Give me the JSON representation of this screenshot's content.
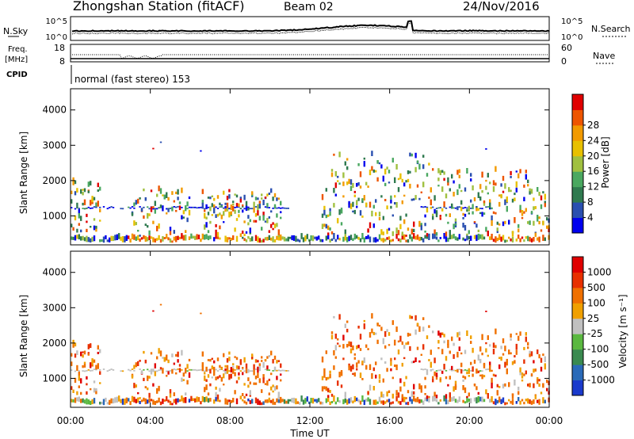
{
  "header": {
    "title": "Zhongshan Station (fitACF)",
    "beam": "Beam 02",
    "date": "24/Nov/2016"
  },
  "noise_panel": {
    "left_label": "N.Sky",
    "left_ticks": [
      "10^5",
      "10^0"
    ],
    "right_label": "N.Search",
    "right_ticks": [
      "10^5",
      "10^0"
    ]
  },
  "freq_panel": {
    "left_label_1": "Freq.",
    "left_label_2": "[MHz]",
    "left_ticks": [
      "18",
      "8"
    ],
    "right_label": "Nave",
    "right_ticks": [
      "60",
      "0"
    ]
  },
  "cpid_panel": {
    "label": "CPID",
    "mode_text": "normal (fast stereo) 153"
  },
  "chart_data": [
    {
      "type": "heatmap",
      "title": "",
      "xlabel": "Time UT",
      "ylabel": "Slant Range [km]",
      "x_ticks": [
        "00:00",
        "04:00",
        "08:00",
        "12:00",
        "16:00",
        "20:00",
        "00:00"
      ],
      "y_ticks": [
        "1000",
        "2000",
        "3000",
        "4000"
      ],
      "ylim": [
        180,
        4600
      ],
      "colorbar_label": "Power [dB]",
      "colorbar_ticks": [
        "4",
        "8",
        "12",
        "16",
        "20",
        "24",
        "28"
      ],
      "colorbar_colors": [
        "#0000ee",
        "#2a4fb0",
        "#2f7a4f",
        "#4aa860",
        "#a0c040",
        "#e8c000",
        "#f29a00",
        "#ee5500",
        "#e00000"
      ]
    },
    {
      "type": "heatmap",
      "title": "",
      "xlabel": "Time UT",
      "ylabel": "Slant Range [km]",
      "x_ticks": [
        "00:00",
        "04:00",
        "08:00",
        "12:00",
        "16:00",
        "20:00",
        "00:00"
      ],
      "y_ticks": [
        "1000",
        "2000",
        "3000",
        "4000"
      ],
      "ylim": [
        180,
        4600
      ],
      "colorbar_label": "Velocity [m s⁻¹]",
      "colorbar_ticks": [
        "1000",
        "500",
        "100",
        "25",
        "-25",
        "-100",
        "-500",
        "-1000"
      ],
      "colorbar_colors": [
        "#1a3acc",
        "#2a6ab8",
        "#3a8a50",
        "#5ab840",
        "#c0c0c0",
        "#f0a000",
        "#f07000",
        "#e83000",
        "#e00000"
      ]
    }
  ]
}
